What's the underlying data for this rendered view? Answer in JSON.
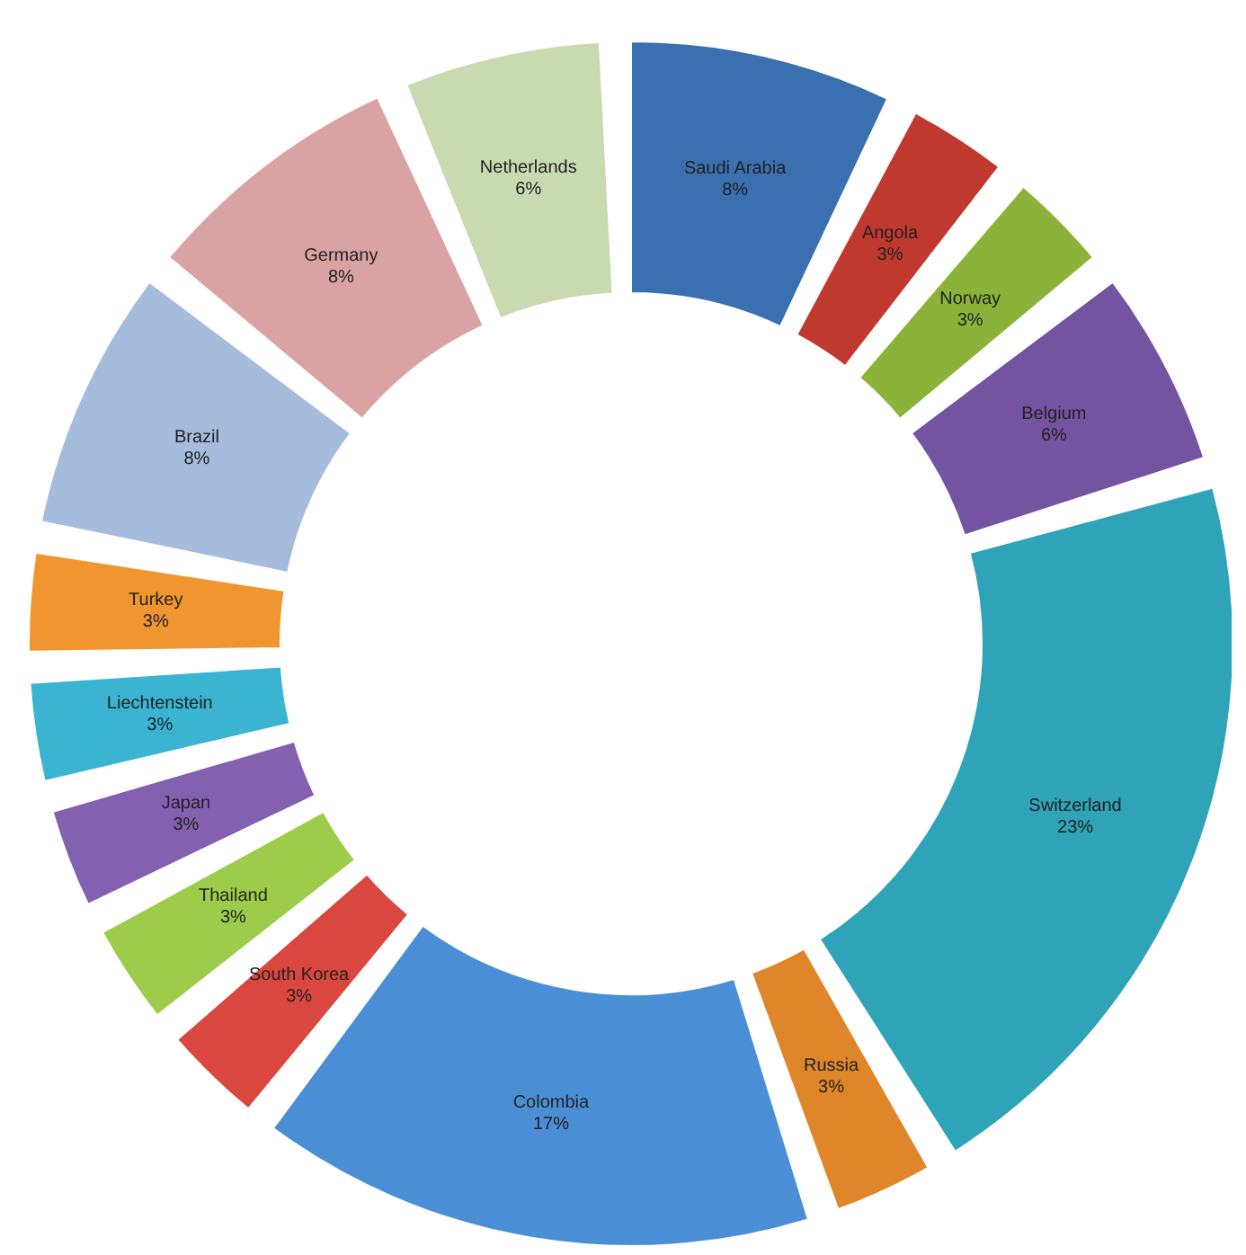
{
  "chart_data": {
    "type": "donut",
    "categories": [
      "Saudi Arabia",
      "Angola",
      "Norway",
      "Belgium",
      "Switzerland",
      "Russia",
      "Colombia",
      "South Korea",
      "Thailand",
      "Japan",
      "Liechtenstein",
      "Turkey",
      "Brazil",
      "Germany",
      "Netherlands"
    ],
    "values": [
      8,
      3,
      3,
      6,
      23,
      3,
      17,
      3,
      3,
      3,
      3,
      3,
      8,
      8,
      6
    ],
    "colors": [
      "#3a70b0",
      "#c0392f",
      "#8bb33a",
      "#7454a0",
      "#2fa3b8",
      "#e0862a",
      "#4a8fd6",
      "#d9473e",
      "#9ccc4a",
      "#8460b0",
      "#3ab4d0",
      "#f09530",
      "#a6bcdc",
      "#d9a3a3",
      "#c9dab0"
    ],
    "value_labels": [
      "8%",
      "3%",
      "3%",
      "6%",
      "23%",
      "3%",
      "17%",
      "3%",
      "3%",
      "3%",
      "3%",
      "3%",
      "8%",
      "8%",
      "6%"
    ],
    "legend": false
  }
}
